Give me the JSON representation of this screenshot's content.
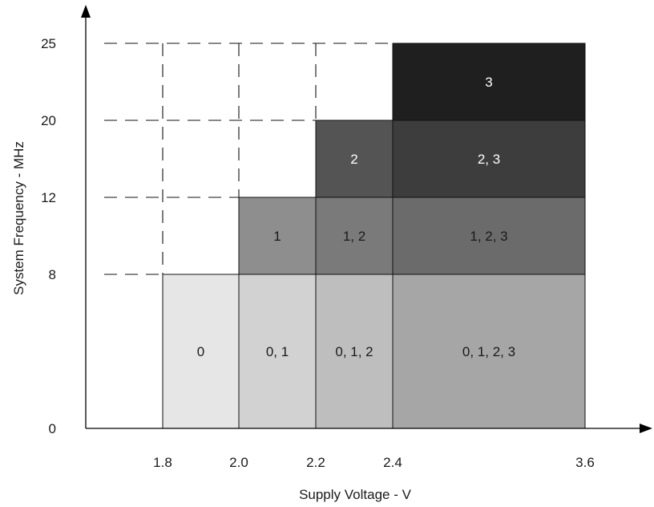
{
  "chart_data": {
    "type": "heatmap",
    "xlabel": "Supply Voltage - V",
    "ylabel": "System Frequency - MHz",
    "x_ticks": [
      {
        "value": 1.8,
        "label": "1.8"
      },
      {
        "value": 2.0,
        "label": "2.0"
      },
      {
        "value": 2.2,
        "label": "2.2"
      },
      {
        "value": 2.4,
        "label": "2.4"
      },
      {
        "value": 3.6,
        "label": "3.6"
      }
    ],
    "y_ticks": [
      {
        "value": 0,
        "label": "0"
      },
      {
        "value": 8,
        "label": "8"
      },
      {
        "value": 12,
        "label": "12"
      },
      {
        "value": 20,
        "label": "20"
      },
      {
        "value": 25,
        "label": "25"
      }
    ],
    "regions": [
      {
        "x": [
          1.8,
          2.0
        ],
        "y": [
          0,
          8
        ],
        "label": "0",
        "fill": "#e6e6e6",
        "text_color": "#1a1a1a"
      },
      {
        "x": [
          2.0,
          2.2
        ],
        "y": [
          0,
          8
        ],
        "label": "0, 1",
        "fill": "#d2d2d2",
        "text_color": "#1a1a1a"
      },
      {
        "x": [
          2.2,
          2.4
        ],
        "y": [
          0,
          8
        ],
        "label": "0, 1, 2",
        "fill": "#bebebe",
        "text_color": "#1a1a1a"
      },
      {
        "x": [
          2.4,
          3.6
        ],
        "y": [
          0,
          8
        ],
        "label": "0, 1, 2, 3",
        "fill": "#a6a6a6",
        "text_color": "#1a1a1a"
      },
      {
        "x": [
          2.0,
          2.2
        ],
        "y": [
          8,
          12
        ],
        "label": "1",
        "fill": "#8e8e8e",
        "text_color": "#1a1a1a"
      },
      {
        "x": [
          2.2,
          2.4
        ],
        "y": [
          8,
          12
        ],
        "label": "1, 2",
        "fill": "#7a7a7a",
        "text_color": "#1a1a1a"
      },
      {
        "x": [
          2.4,
          3.6
        ],
        "y": [
          8,
          12
        ],
        "label": "1, 2, 3",
        "fill": "#6b6b6b",
        "text_color": "#1a1a1a"
      },
      {
        "x": [
          2.2,
          2.4
        ],
        "y": [
          12,
          20
        ],
        "label": "2",
        "fill": "#545454",
        "text_color": "#ffffff"
      },
      {
        "x": [
          2.4,
          3.6
        ],
        "y": [
          12,
          20
        ],
        "label": "2, 3",
        "fill": "#3d3d3d",
        "text_color": "#ffffff"
      },
      {
        "x": [
          2.4,
          3.6
        ],
        "y": [
          20,
          25
        ],
        "label": "3",
        "fill": "#1f1f1f",
        "text_color": "#ffffff"
      }
    ],
    "grid": "dashed guide lines at each tick",
    "legend": "none"
  }
}
